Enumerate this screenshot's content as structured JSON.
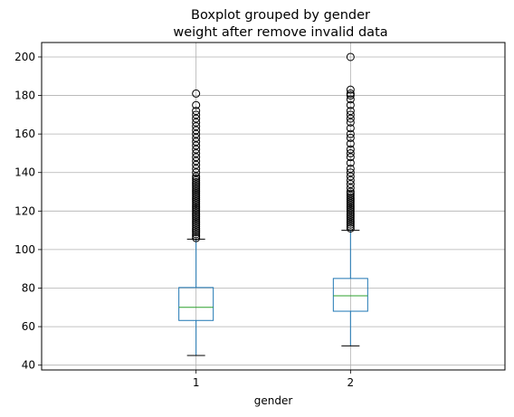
{
  "chart_data": {
    "type": "boxplot",
    "title": "Boxplot grouped by gender",
    "subtitle": "weight after remove invalid data",
    "xlabel": "gender",
    "ylabel": "",
    "categories": [
      "1",
      "2"
    ],
    "ylim": [
      37.5,
      207.5
    ],
    "yticks": [
      40,
      60,
      80,
      100,
      120,
      140,
      160,
      180,
      200
    ],
    "grid": true,
    "colors": {
      "box": "#1f77b4",
      "median": "#2ca02c",
      "whisker": "#1f77b4",
      "cap": "#000000",
      "flier": "#000000",
      "grid": "#b0b0b0"
    },
    "boxes": [
      {
        "category": "1",
        "whislo": 45,
        "q1": 63.2,
        "median": 70,
        "q3": 80.3,
        "whishi": 105.4,
        "fliers": [
          106,
          107,
          108,
          109,
          110,
          111,
          112,
          113,
          114,
          115,
          116,
          117,
          118,
          119,
          120,
          121,
          122,
          123,
          124,
          125,
          126,
          127,
          128,
          129,
          130,
          131,
          132,
          133,
          134,
          135,
          136,
          137,
          138,
          140,
          142,
          144,
          146,
          148,
          150,
          152,
          154,
          156,
          158,
          160,
          162,
          164,
          166,
          168,
          170,
          172,
          175,
          181
        ]
      },
      {
        "category": "2",
        "whislo": 50,
        "q1": 68,
        "median": 76,
        "q3": 85,
        "whishi": 110,
        "fliers": [
          111,
          112,
          113,
          114,
          115,
          116,
          117,
          118,
          119,
          120,
          121,
          122,
          123,
          124,
          125,
          126,
          127,
          128,
          129,
          130,
          132,
          134,
          136,
          138,
          140,
          142,
          145,
          148,
          150,
          152,
          155,
          158,
          160,
          163,
          166,
          168,
          170,
          172,
          175,
          178,
          180,
          181,
          183,
          200
        ]
      }
    ]
  }
}
